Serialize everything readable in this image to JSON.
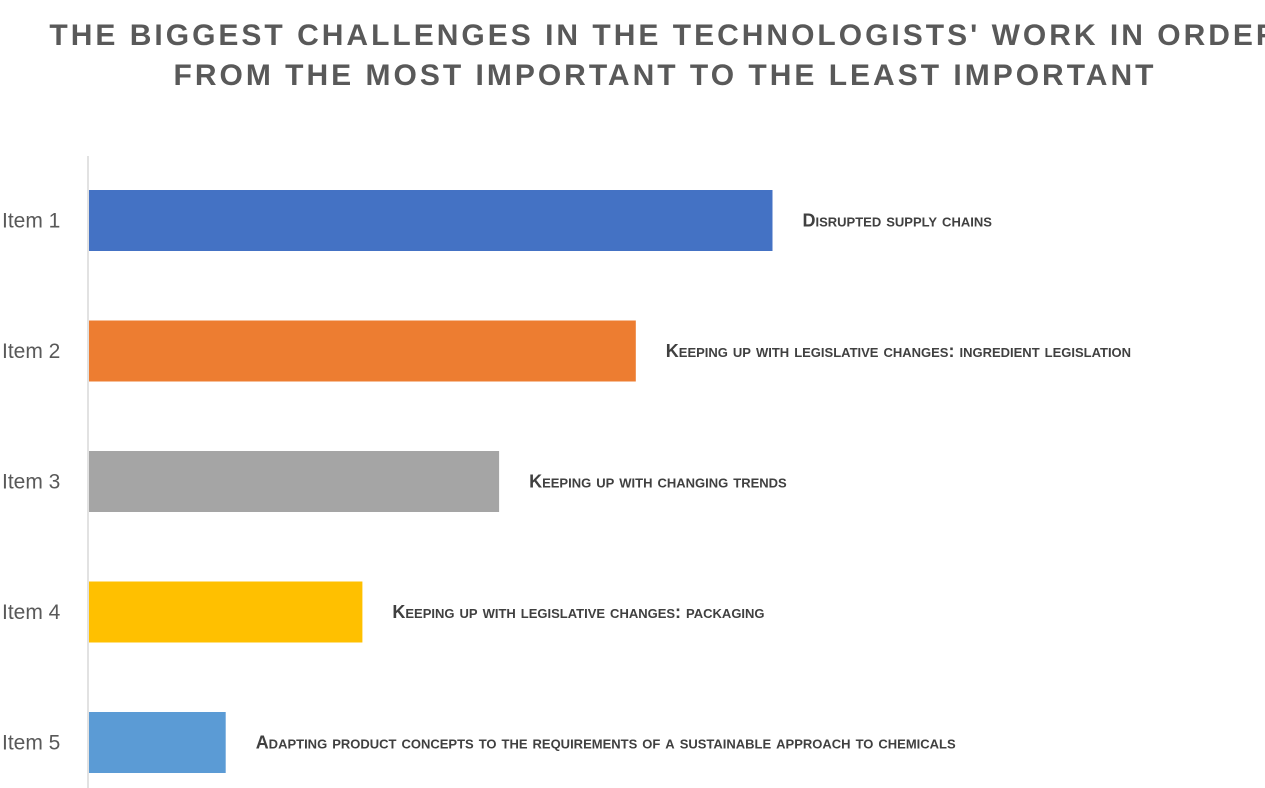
{
  "chart_data": {
    "type": "bar",
    "orientation": "horizontal",
    "title": "THE BIGGEST CHALLENGES IN THE TECHNOLOGISTS' WORK IN ORDER FROM THE MOST IMPORTANT TO THE LEAST IMPORTANT",
    "categories": [
      "Item 1",
      "Item 2",
      "Item 3",
      "Item 4",
      "Item 5"
    ],
    "values": [
      5,
      4,
      3,
      2,
      1
    ],
    "data_labels": [
      "Disrupted supply chains",
      "Keeping up with legislative changes: ingredient legislation",
      "Keeping up with changing trends",
      "Keeping up with legislative changes: packaging",
      "Adapting product concepts to the requirements of a sustainable approach to chemicals"
    ],
    "colors": [
      "#4472C4",
      "#ED7D31",
      "#A5A5A5",
      "#FFC000",
      "#5B9BD5"
    ],
    "xlim": [
      0,
      6.5
    ],
    "grid": false,
    "legend": "none"
  }
}
